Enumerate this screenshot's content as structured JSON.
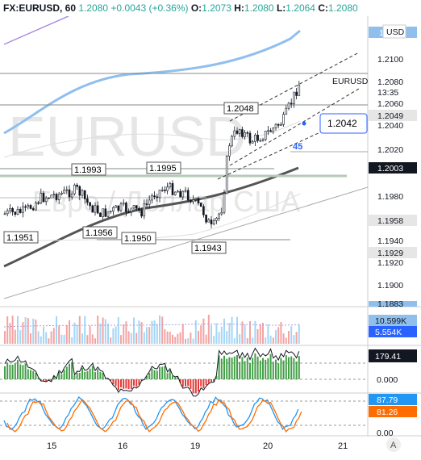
{
  "header": {
    "symbol": "FX:EURUSD, 60",
    "last": "1.2080",
    "change": "+0.0043 (+0.36%)",
    "o_label": "O:",
    "o_value": "1.2073",
    "h_label": "H:",
    "h_value": "1.2080",
    "l_label": "L:",
    "l_value": "1.2064",
    "c_label": "C:",
    "c_value": "1.2080"
  },
  "watermark": {
    "symbol": "EURUSD",
    "description": "Евро / Доллар США"
  },
  "currency_button": "USD",
  "price_axis": {
    "ticks": [
      "1.2100",
      "1.2080",
      "1.2060",
      "1.2040",
      "1.2020",
      "1.1980",
      "1.1960",
      "1.1940",
      "1.1920",
      "1.1900"
    ],
    "labels": {
      "ma_top": "1",
      "eurusd_name": "EURUSD",
      "current": "1.2080",
      "countdown": "13:35",
      "level_1": "1.2049",
      "level_2": "1.2003",
      "level_3": "1.1958",
      "level_4": "1.1929",
      "level_5": "1.1883"
    }
  },
  "price_annotations": {
    "high_left": "1.1993",
    "high_mid": "1.1995",
    "low_1": "1.1951",
    "low_2": "1.1956",
    "low_3": "1.1950",
    "low_4": "1.1943",
    "high_right": "1.2048",
    "channel_price": "1.2042",
    "count_45": "45"
  },
  "volume_labels": {
    "volume": "10.599K",
    "volume_ma": "5.554K"
  },
  "cci": {
    "value": "179.41",
    "zero": "0.000"
  },
  "stoch": {
    "k": "87.79",
    "d": "81.26",
    "zero": "0.00"
  },
  "time_axis": {
    "ticks": [
      "15",
      "16",
      "19",
      "20",
      "21"
    ]
  },
  "auto_scale_button": "A",
  "colors": {
    "up": "#26a69a",
    "down": "#ef5350",
    "ma_blue": "#90bfee",
    "ma_dark": "#555555",
    "label_dark": "#131722",
    "label_blue": "#2962ff"
  }
}
